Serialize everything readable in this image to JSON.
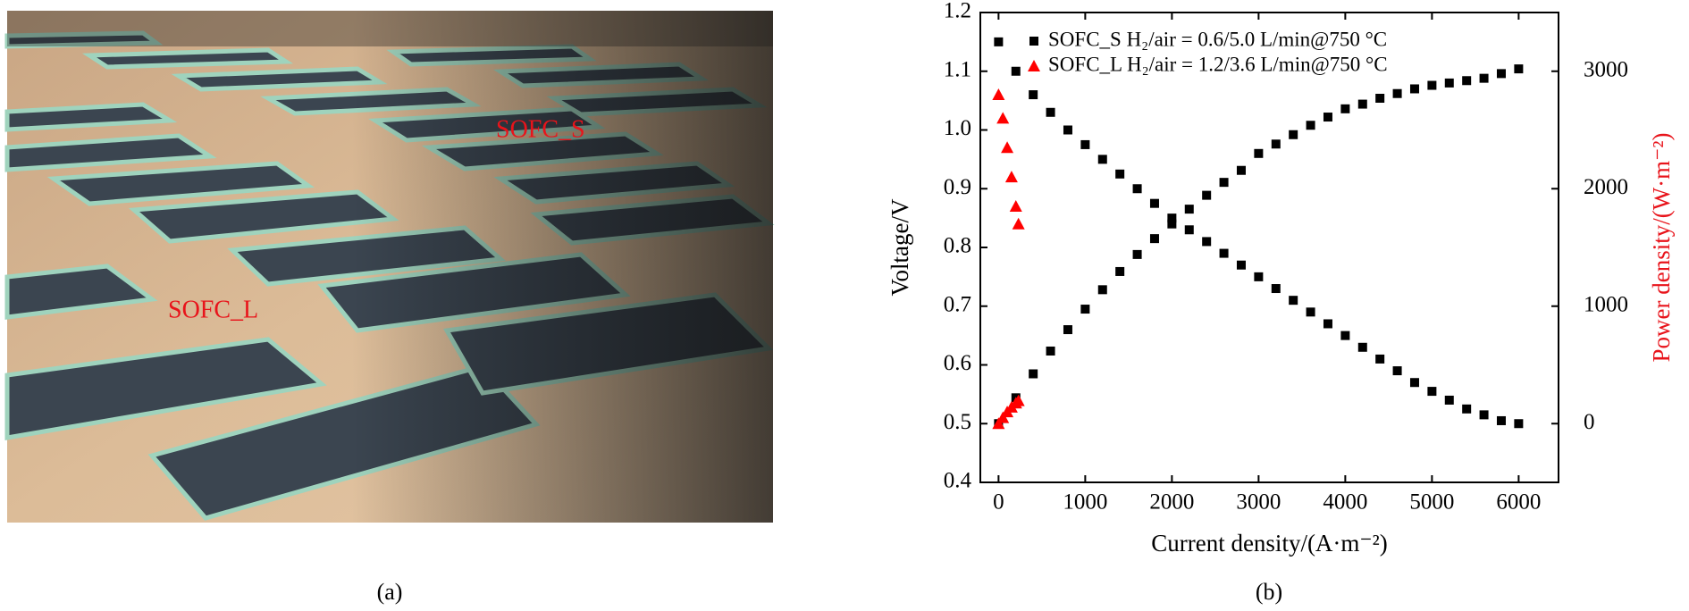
{
  "photo": {
    "labels": [
      "SOFC_S",
      "SOFC_L"
    ],
    "caption": "(a)"
  },
  "chart_data": {
    "type": "scatter",
    "caption": "(b)",
    "x_label": "Current density/(A·m⁻²)",
    "y_label": "Voltage/V",
    "y2_label": "Power density/(W·m⁻²)",
    "xlim": [
      -210,
      6460
    ],
    "xticks": [
      0,
      1000,
      2000,
      3000,
      4000,
      5000,
      6000
    ],
    "ylim": [
      0.4,
      1.2
    ],
    "yticks": [
      0.4,
      0.5,
      0.6,
      0.7,
      0.8,
      0.9,
      {
        "value": 1,
        "label": "1.0"
      },
      1.1,
      1.2
    ],
    "y2lim": [
      -500,
      3500
    ],
    "y2ticks": [
      0,
      1000,
      2000,
      3000
    ],
    "legend": "upper left",
    "series": [
      {
        "name": "SOFC_S H₂/air = 0.6/5.0 L/min@750 °C",
        "color": "#000000",
        "marker": "square",
        "x": [
          0,
          200,
          400,
          600,
          800,
          1000,
          1200,
          1400,
          1600,
          1800,
          2000,
          2200,
          2400,
          2600,
          2800,
          3000,
          3200,
          3400,
          3600,
          3800,
          4000,
          4200,
          4400,
          4600,
          4800,
          5000,
          5200,
          5400,
          5600,
          5800,
          6000
        ],
        "values": [
          1.15,
          1.1,
          1.06,
          1.03,
          1.0,
          0.975,
          0.95,
          0.925,
          0.9,
          0.875,
          0.85,
          0.83,
          0.81,
          0.79,
          0.77,
          0.75,
          0.73,
          0.71,
          0.69,
          0.67,
          0.65,
          0.63,
          0.61,
          0.59,
          0.57,
          0.555,
          0.54,
          0.525,
          0.515,
          0.505,
          0.5
        ]
      },
      {
        "name": "SOFC_L H₂/air = 1.2/3.6 L/min@750 °C",
        "color": "#ff0000",
        "marker": "triangle",
        "x": [
          0,
          50,
          100,
          150,
          200,
          230
        ],
        "values": [
          1.06,
          1.02,
          0.97,
          0.92,
          0.87,
          0.84
        ]
      },
      {
        "color": "#000000",
        "marker": "square",
        "axis": "y2",
        "x": [
          0,
          200,
          400,
          600,
          800,
          1000,
          1200,
          1400,
          1600,
          1800,
          2000,
          2200,
          2400,
          2600,
          2800,
          3000,
          3200,
          3400,
          3600,
          3800,
          4000,
          4200,
          4400,
          4600,
          4800,
          5000,
          5200,
          5400,
          5600,
          5800,
          6000
        ],
        "values": [
          0,
          220,
          424,
          618,
          800,
          975,
          1140,
          1295,
          1440,
          1575,
          1700,
          1826,
          1944,
          2054,
          2156,
          2300,
          2380,
          2460,
          2540,
          2610,
          2680,
          2720,
          2770,
          2810,
          2850,
          2880,
          2900,
          2920,
          2940,
          2980,
          3020
        ]
      },
      {
        "color": "#ff0000",
        "marker": "triangle",
        "axis": "y2",
        "x": [
          0,
          50,
          100,
          150,
          200,
          230
        ],
        "values": [
          0,
          50,
          100,
          140,
          175,
          195
        ]
      }
    ]
  }
}
